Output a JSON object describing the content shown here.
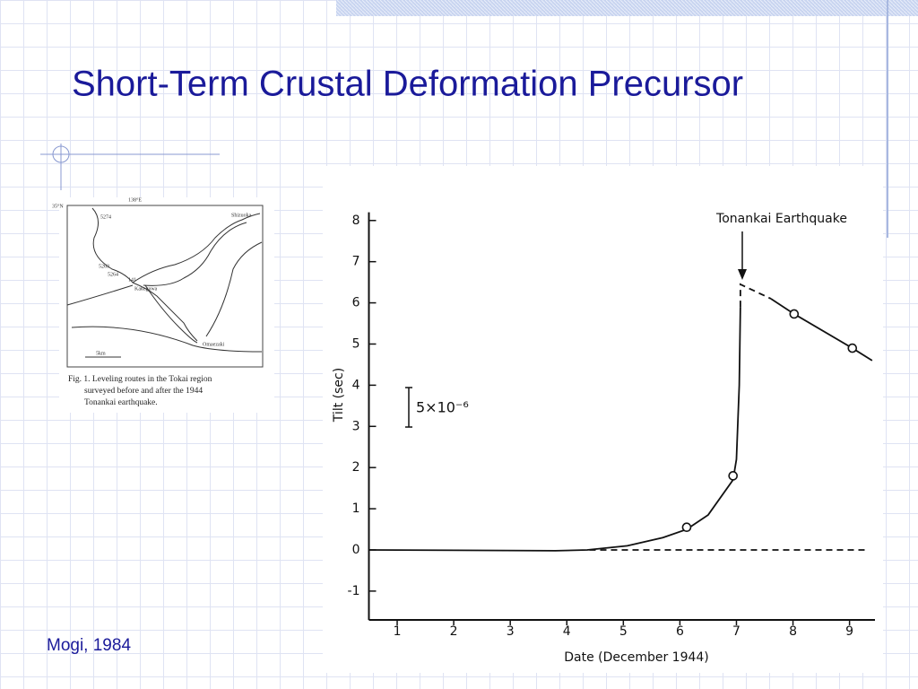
{
  "slide": {
    "title": "Short-Term Crustal Deformation Precursor",
    "source": "Mogi, 1984"
  },
  "map": {
    "labels": [
      "35°N",
      "138°E",
      "5274",
      "Shizuoka",
      "5263",
      "5264",
      "141",
      "Kakegawa",
      "Omaezaki",
      "5km"
    ],
    "caption": [
      "Fig. 1.  Leveling routes in the Tokai region",
      "surveyed  before  and  after  the  1944",
      "Tonankai earthquake."
    ]
  },
  "chart_data": {
    "type": "line",
    "xlabel": "Date (December 1944)",
    "ylabel": "Tilt (sec)",
    "xlim": [
      0.5,
      9.45
    ],
    "xticks": [
      1,
      2,
      3,
      4,
      5,
      6,
      7,
      8,
      9
    ],
    "ylim": [
      -1.7,
      8.2
    ],
    "yticks": [
      -1,
      0,
      1,
      2,
      3,
      4,
      5,
      6,
      7,
      8
    ],
    "annotations": [
      "Tonankai Earthquake",
      "5×10⁻⁶"
    ],
    "series": [
      {
        "style": "solid",
        "color": "#111111",
        "x": [
          0.5,
          3.8,
          4.36,
          5.07,
          5.7,
          6.12,
          6.5,
          6.94,
          7.0,
          7.05,
          7.07
        ],
        "values": [
          0,
          -0.02,
          0,
          0.1,
          0.3,
          0.5,
          0.85,
          1.7,
          2.2,
          4.0,
          5.9
        ]
      },
      {
        "style": "dashed",
        "color": "#111111",
        "x": [
          7.07,
          7.07,
          7.61
        ],
        "values": [
          5.9,
          6.45,
          6.1
        ]
      },
      {
        "style": "solid",
        "color": "#111111",
        "x": [
          7.61,
          8.02,
          9.05,
          9.4
        ],
        "values": [
          6.1,
          5.73,
          4.9,
          4.6
        ]
      },
      {
        "style": "dashed",
        "color": "#111111",
        "x": [
          4.4,
          9.3
        ],
        "values": [
          0,
          0
        ]
      },
      {
        "style": "markers",
        "color": "#111111",
        "x": [
          6.12,
          6.94,
          8.02,
          9.05
        ],
        "values": [
          0.55,
          1.8,
          5.73,
          4.9
        ]
      }
    ]
  }
}
